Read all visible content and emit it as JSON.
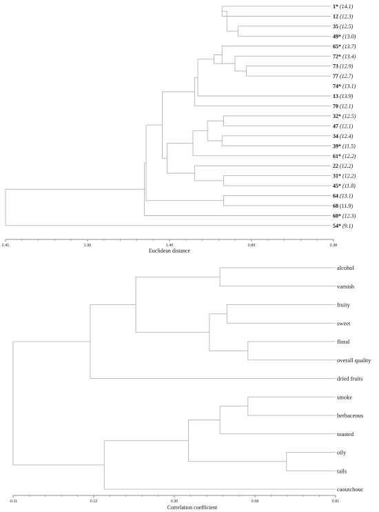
{
  "chart_data": [
    {
      "type": "dendrogram",
      "xlabel": "Euclidean distance",
      "xlim": [
        2.41,
        0.38
      ],
      "ticks": [
        "2.41",
        "1.90",
        "1.40",
        "0.89",
        "0.38"
      ],
      "leaves": [
        {
          "num": "1*",
          "score": "(14.1)",
          "italic": true
        },
        {
          "num": "12",
          "score": "(12.3)",
          "italic": true
        },
        {
          "num": "35",
          "score": "(12.5)",
          "italic": true
        },
        {
          "num": "49*",
          "score": "(13.0)",
          "italic": true
        },
        {
          "num": "65*",
          "score": "(13.7)",
          "italic": true
        },
        {
          "num": "72*",
          "score": "(13.4)",
          "italic": true
        },
        {
          "num": "73",
          "score": "(12.9)",
          "italic": true
        },
        {
          "num": "77",
          "score": "(12.7)",
          "italic": true
        },
        {
          "num": "74*",
          "score": "(13.1)",
          "italic": true
        },
        {
          "num": "13",
          "score": "(13.9)",
          "italic": true
        },
        {
          "num": "70",
          "score": "(12.1)",
          "italic": true
        },
        {
          "num": "32*",
          "score": "(12.5)",
          "italic": true
        },
        {
          "num": "47",
          "score": "(12.1)",
          "italic": true
        },
        {
          "num": "34",
          "score": "(12.4)",
          "italic": true
        },
        {
          "num": "39*",
          "score": "(11.5)",
          "italic": true
        },
        {
          "num": "61*",
          "score": "(12.2)",
          "italic": true
        },
        {
          "num": "22",
          "score": "(12.2)",
          "italic": true
        },
        {
          "num": "31*",
          "score": "(12.2)",
          "italic": true
        },
        {
          "num": "45*",
          "score": "(11.8)",
          "italic": true
        },
        {
          "num": "64",
          "score": "(13.1)",
          "italic": true
        },
        {
          "num": "68",
          "score": "(11.9)",
          "italic": false
        },
        {
          "num": "60*",
          "score": "(12.3)",
          "italic": true
        },
        {
          "num": "54*",
          "score": "(9.1)",
          "italic": true
        }
      ],
      "merges": [
        [
          0,
          1,
          1.07
        ],
        [
          2,
          3,
          0.97
        ],
        [
          -1,
          -2,
          1.04
        ],
        [
          6,
          7,
          0.92
        ],
        [
          5,
          -4,
          0.99
        ],
        [
          4,
          -5,
          1.07
        ],
        [
          -5,
          -6,
          1.12
        ],
        [
          -7,
          9,
          1.22
        ],
        [
          -8,
          10,
          1.24
        ],
        [
          11,
          12,
          1.06
        ],
        [
          13,
          14,
          1.07
        ],
        [
          -10,
          -11,
          1.16
        ],
        [
          -12,
          15,
          1.25
        ],
        [
          17,
          18,
          1.06
        ],
        [
          16,
          -14,
          1.24
        ],
        [
          -13,
          -15,
          1.41
        ],
        [
          -9,
          -16,
          1.44
        ],
        [
          19,
          20,
          1.06
        ],
        [
          -17,
          -18,
          1.54
        ],
        [
          -19,
          21,
          1.55
        ],
        [
          -20,
          22,
          2.41
        ]
      ]
    },
    {
      "type": "dendrogram",
      "xlabel": "Correlation  coefficient",
      "xlim": [
        -0.11,
        0.81
      ],
      "ticks": [
        "-0.11",
        "0.12",
        "0.35",
        "0.58",
        "0.81"
      ],
      "leaves": [
        {
          "label": "alcohol"
        },
        {
          "label": "varnish"
        },
        {
          "label": "fruity"
        },
        {
          "label": "sweet"
        },
        {
          "label": "floral"
        },
        {
          "label": "overall quality"
        },
        {
          "label": "dried fruits"
        },
        {
          "label": "smoke"
        },
        {
          "label": "herbaceous"
        },
        {
          "label": "toasted"
        },
        {
          "label": "oily"
        },
        {
          "label": "tails"
        },
        {
          "label": "caoutchouc"
        }
      ],
      "merges": [
        [
          0,
          1,
          0.48
        ],
        [
          2,
          3,
          0.5
        ],
        [
          4,
          5,
          0.56
        ],
        [
          -2,
          -3,
          0.45
        ],
        [
          -1,
          -4,
          0.24
        ],
        [
          -5,
          6,
          0.11
        ],
        [
          7,
          8,
          0.56
        ],
        [
          -7,
          9,
          0.48
        ],
        [
          10,
          11,
          0.67
        ],
        [
          -8,
          -9,
          0.39
        ],
        [
          -10,
          12,
          0.15
        ],
        [
          -6,
          -11,
          -0.11
        ]
      ]
    }
  ]
}
